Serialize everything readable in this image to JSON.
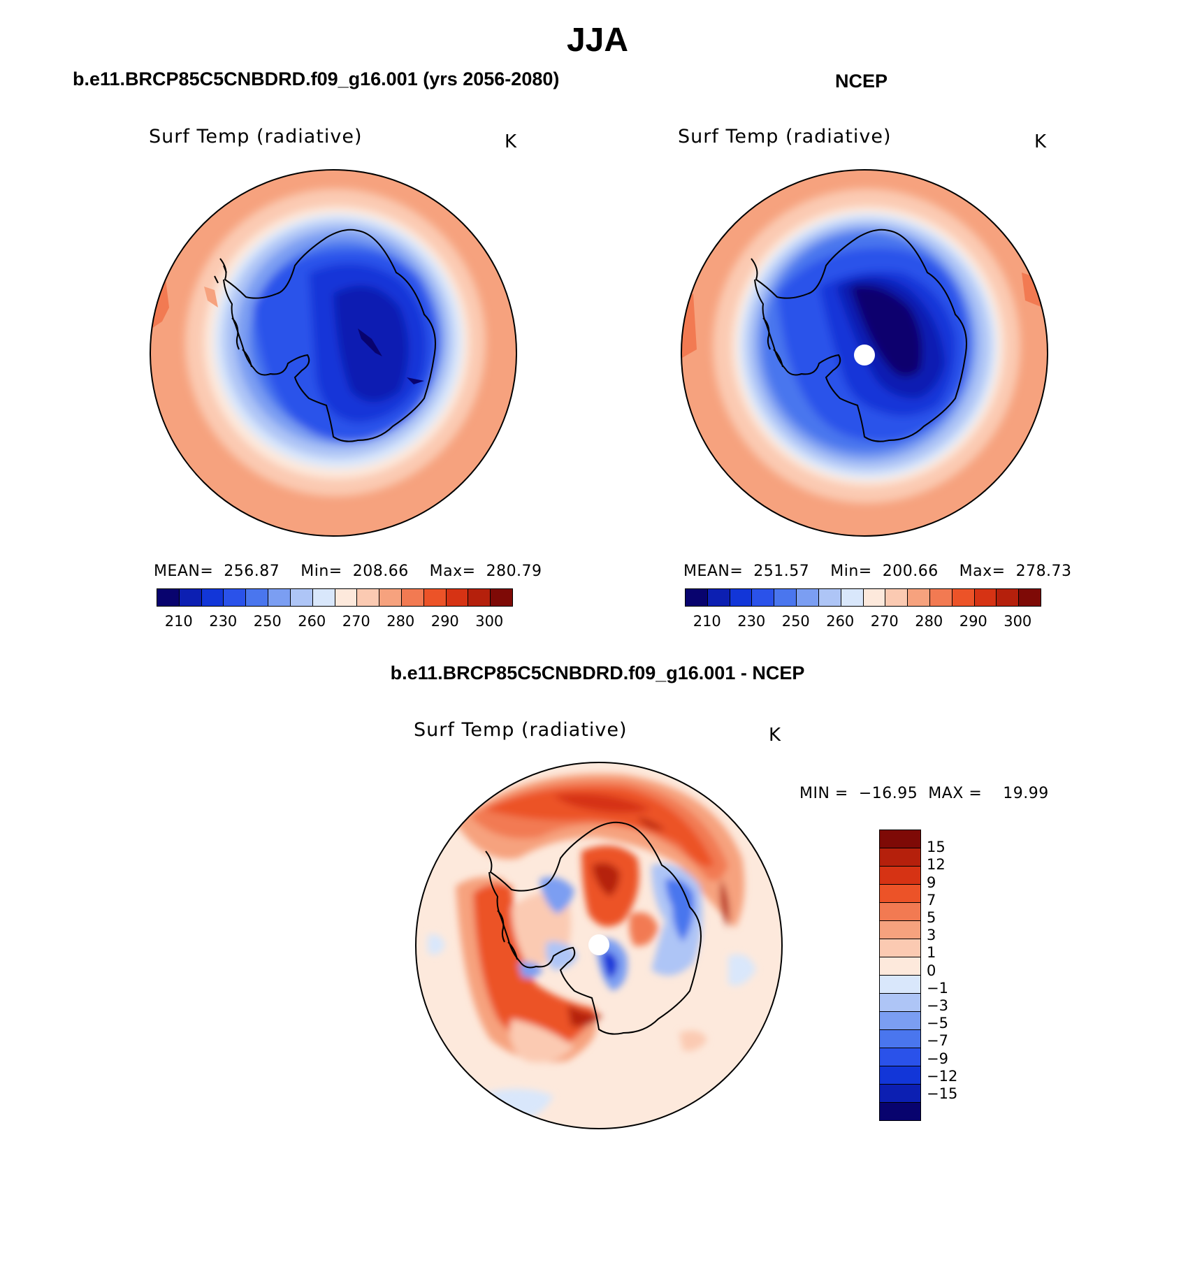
{
  "figure_title": "JJA",
  "panels": [
    {
      "title": "b.e11.BRCP85C5CNBDRD.f09_g16.001 (yrs 2056-2080)",
      "variable": "Surf Temp (radiative)",
      "units": "K",
      "stats": "MEAN=  256.87    Min=  208.66    Max=  280.79"
    },
    {
      "title": "NCEP",
      "variable": "Surf Temp (radiative)",
      "units": "K",
      "stats": "MEAN=  251.57    Min=  200.66    Max=  278.73"
    },
    {
      "title": "b.e11.BRCP85C5CNBDRD.f09_g16.001 - NCEP",
      "variable": "Surf Temp (radiative)",
      "units": "K",
      "stats": "MIN =  −16.95  MAX =    19.99"
    }
  ],
  "colorbar_abs": {
    "labels": [
      "210",
      "230",
      "250",
      "260",
      "270",
      "280",
      "290",
      "300"
    ],
    "colors": [
      "#08036e",
      "#0c1fb2",
      "#1236d8",
      "#2a52ea",
      "#4a76ee",
      "#7b9ef2",
      "#aec5f6",
      "#d9e7fb",
      "#fde9dc",
      "#fbcab2",
      "#f6a27e",
      "#f27a52",
      "#ec5328",
      "#d63314",
      "#b5200c",
      "#7e0a06"
    ]
  },
  "colorbar_diff": {
    "labels": [
      "15",
      "12",
      "9",
      "7",
      "5",
      "3",
      "1",
      "0",
      "−1",
      "−3",
      "−5",
      "−7",
      "−9",
      "−12",
      "−15"
    ],
    "colors": [
      "#7e0a06",
      "#b5200c",
      "#d63314",
      "#ec5328",
      "#f27a52",
      "#f6a27e",
      "#fbcab2",
      "#fde9dc",
      "#d9e7fb",
      "#aec5f6",
      "#7b9ef2",
      "#4a76ee",
      "#2a52ea",
      "#1236d8",
      "#0c1fb2",
      "#08036e"
    ]
  }
}
